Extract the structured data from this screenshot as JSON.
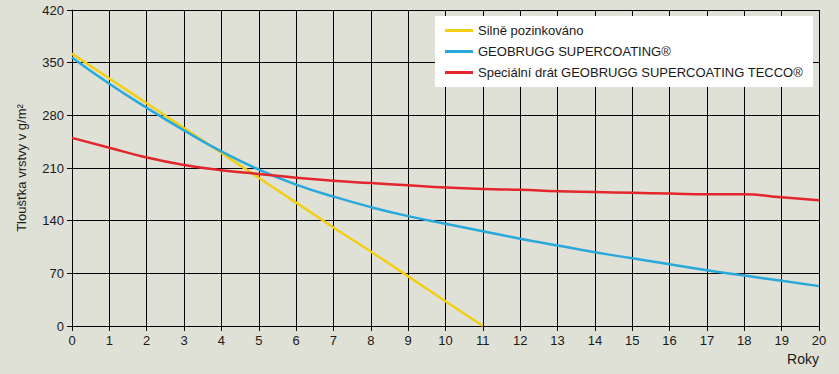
{
  "chart_data": {
    "type": "line",
    "xlabel": "Roky",
    "ylabel": "Tloušťka vrstvy v g/m²",
    "x": [
      0,
      1,
      2,
      3,
      4,
      5,
      6,
      7,
      8,
      9,
      10,
      11,
      12,
      13,
      14,
      15,
      16,
      17,
      18,
      19,
      20
    ],
    "series": [
      {
        "name": "Silně pozinkováno",
        "color": "#f2cf14",
        "values": [
          362,
          329,
          296,
          263,
          230,
          197,
          164,
          131,
          99,
          66,
          33,
          0,
          null,
          null,
          null,
          null,
          null,
          null,
          null,
          null,
          null
        ]
      },
      {
        "name": "GEOBRUGG SUPERCOATING®",
        "color": "#29a8dc",
        "values": [
          357,
          322,
          290,
          260,
          232,
          208,
          188,
          172,
          158,
          146,
          136,
          126,
          116,
          107,
          98,
          90,
          82,
          74,
          67,
          60,
          53
        ]
      },
      {
        "name": "Speciální drát GEOBRUGG SUPERCOATING TECCO®",
        "color": "#e3262b",
        "values": [
          250,
          237,
          224,
          214,
          207,
          202,
          197,
          193,
          190,
          187,
          184,
          182,
          181,
          179,
          178,
          177,
          176,
          175,
          175,
          171,
          167
        ]
      }
    ],
    "xlim": [
      0,
      20
    ],
    "xticks": [
      0,
      1,
      2,
      3,
      4,
      5,
      6,
      7,
      8,
      9,
      10,
      11,
      12,
      13,
      14,
      15,
      16,
      17,
      18,
      19,
      20
    ],
    "ylim": [
      0,
      420
    ],
    "yticks": [
      0,
      70,
      140,
      210,
      280,
      350,
      420
    ],
    "grid": true,
    "legend": "upper right"
  }
}
